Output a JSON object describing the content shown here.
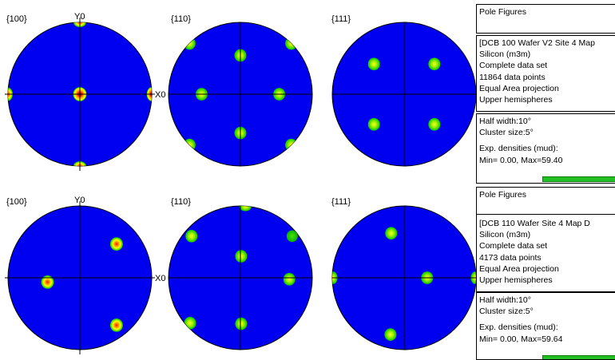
{
  "colors": {
    "sphere": "#0000f0",
    "pole_outer": "#00d200",
    "pole_mid": "#ffff00",
    "pole_hot": "#ff2800",
    "pole_core": "#d00000",
    "axis_line": "#000000",
    "density_bar": "#22c022"
  },
  "figures": [
    {
      "name": "DCB 100 Wafer V2 Site 4 Map",
      "plots": [
        {
          "label": "{100}",
          "axis_top": "Y0",
          "axis_right": "X0",
          "poles": [
            [
              0,
              1
            ],
            [
              0,
              -1
            ],
            [
              1,
              0
            ],
            [
              -1,
              0
            ],
            [
              0,
              0
            ]
          ],
          "intensity": [
            2,
            2,
            3,
            2,
            3
          ]
        },
        {
          "label": "{110}",
          "axis_top": "",
          "axis_right": "",
          "poles": [
            [
              0.707,
              0.707
            ],
            [
              -0.707,
              0.707
            ],
            [
              0.707,
              -0.707
            ],
            [
              -0.707,
              -0.707
            ],
            [
              0,
              0.54
            ],
            [
              0,
              -0.54
            ],
            [
              0.54,
              0
            ],
            [
              -0.54,
              0
            ]
          ],
          "intensity": [
            1,
            1,
            1,
            1,
            1,
            1,
            1,
            1
          ]
        },
        {
          "label": "{111}",
          "axis_top": "",
          "axis_right": "",
          "poles": [
            [
              -0.42,
              0.42
            ],
            [
              0.42,
              0.42
            ],
            [
              -0.42,
              -0.42
            ],
            [
              0.42,
              -0.42
            ]
          ],
          "intensity": [
            1,
            1,
            1,
            1
          ]
        }
      ]
    },
    {
      "name": "DCB 110 Wafer Site 4 Map D",
      "plots": [
        {
          "label": "{100}",
          "axis_top": "Y0",
          "axis_right": "X0",
          "poles": [
            [
              0.51,
              0.47
            ],
            [
              -0.45,
              -0.06
            ],
            [
              0.51,
              -0.66
            ]
          ],
          "intensity": [
            2,
            2,
            2
          ]
        },
        {
          "label": "{110}",
          "axis_top": "",
          "axis_right": "",
          "poles": [
            [
              0.07,
              0.99
            ],
            [
              -0.68,
              0.58
            ],
            [
              0.68,
              -0.02
            ],
            [
              0.01,
              0.3
            ],
            [
              -0.7,
              -0.63
            ],
            [
              0.01,
              -0.64
            ],
            [
              0.72,
              0.58
            ]
          ],
          "intensity": [
            1,
            1,
            1,
            1,
            1,
            1,
            0
          ]
        },
        {
          "label": "{111}",
          "axis_top": "",
          "axis_right": "",
          "poles": [
            [
              -0.18,
              0.62
            ],
            [
              0.32,
              0.0
            ],
            [
              -0.19,
              -0.79
            ],
            [
              -0.99,
              0.0
            ],
            [
              0.99,
              0.0
            ]
          ],
          "intensity": [
            1,
            1,
            1,
            1,
            1
          ]
        }
      ]
    }
  ],
  "panels": [
    {
      "title": "Pole Figures",
      "info": [
        "[DCB 100 Wafer V2 Site 4 Map",
        "Silicon (m3m)",
        "Complete data set",
        "11864 data points",
        "Equal Area projection",
        "Upper hemispheres"
      ],
      "half_width": "Half width:10°",
      "cluster_size": "Cluster size:5°",
      "densities_label": "Exp. densities (mud):",
      "min_max": "Min= 0.00, Max=59.40",
      "density_fraction": 1.0
    },
    {
      "title": "Pole Figures",
      "info": [
        "[DCB 110 Wafer Site 4 Map D",
        "Silicon (m3m)",
        "Complete data set",
        "4173 data points",
        "Equal Area projection",
        "Upper hemispheres"
      ],
      "half_width": "Half width:10°",
      "cluster_size": "Cluster size:5°",
      "densities_label": "Exp. densities (mud):",
      "min_max": "Min= 0.00, Max=59.64",
      "density_fraction": 1.0
    }
  ]
}
